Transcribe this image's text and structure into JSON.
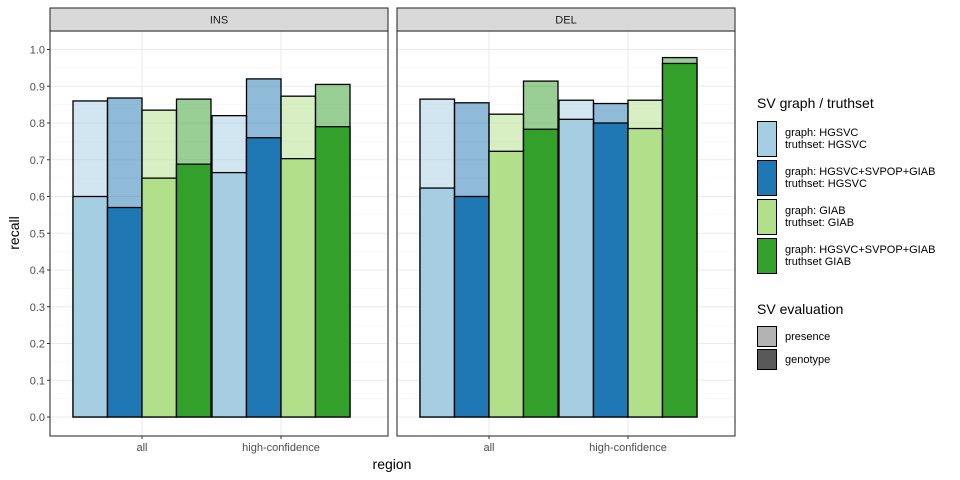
{
  "chart_data": {
    "type": "bar",
    "xlabel": "region",
    "ylabel": "recall",
    "ylim": [
      0,
      1.0
    ],
    "yticks": [
      "0.0",
      "0.1",
      "0.2",
      "0.3",
      "0.4",
      "0.5",
      "0.6",
      "0.7",
      "0.8",
      "0.9",
      "1.0"
    ],
    "categories": [
      "all",
      "high-confidence"
    ],
    "panels": [
      {
        "strip": "INS",
        "series": [
          {
            "key": "hgsvc_hgsvc",
            "presence": [
              0.86,
              0.82
            ],
            "genotype": [
              0.6,
              0.665
            ]
          },
          {
            "key": "hgsvcpop_hgsvc",
            "presence": [
              0.868,
              0.92
            ],
            "genotype": [
              0.57,
              0.76
            ]
          },
          {
            "key": "giab_giab",
            "presence": [
              0.835,
              0.873
            ],
            "genotype": [
              0.65,
              0.703
            ]
          },
          {
            "key": "hgsvcpop_giab",
            "presence": [
              0.865,
              0.905
            ],
            "genotype": [
              0.688,
              0.79
            ]
          }
        ]
      },
      {
        "strip": "DEL",
        "series": [
          {
            "key": "hgsvc_hgsvc",
            "presence": [
              0.865,
              0.862
            ],
            "genotype": [
              0.623,
              0.81
            ]
          },
          {
            "key": "hgsvcpop_hgsvc",
            "presence": [
              0.855,
              0.853
            ],
            "genotype": [
              0.6,
              0.8
            ]
          },
          {
            "key": "giab_giab",
            "presence": [
              0.824,
              0.862
            ],
            "genotype": [
              0.723,
              0.785
            ]
          },
          {
            "key": "hgsvcpop_giab",
            "presence": [
              0.914,
              0.978
            ],
            "genotype": [
              0.783,
              0.962
            ]
          }
        ]
      }
    ],
    "colors": {
      "hgsvc_hgsvc": "#a6cee3",
      "hgsvcpop_hgsvc": "#1f78b4",
      "giab_giab": "#b2df8a",
      "hgsvcpop_giab": "#33a02c"
    },
    "presence_alpha": 0.5,
    "grid": true,
    "legend_position": "right"
  },
  "legend": {
    "graph_title": "SV graph / truthset",
    "graph_items": [
      {
        "key": "hgsvc_hgsvc",
        "line1": "graph: HGSVC",
        "line2": "truthset: HGSVC"
      },
      {
        "key": "hgsvcpop_hgsvc",
        "line1": "graph: HGSVC+SVPOP+GIAB",
        "line2": "truthset: HGSVC"
      },
      {
        "key": "giab_giab",
        "line1": "graph: GIAB",
        "line2": "truthset: GIAB"
      },
      {
        "key": "hgsvcpop_giab",
        "line1": "graph: HGSVC+SVPOP+GIAB",
        "line2": "truthset GIAB"
      }
    ],
    "eval_title": "SV evaluation",
    "eval_items": [
      {
        "label": "presence",
        "color": "#b3b3b3"
      },
      {
        "label": "genotype",
        "color": "#595959"
      }
    ]
  }
}
